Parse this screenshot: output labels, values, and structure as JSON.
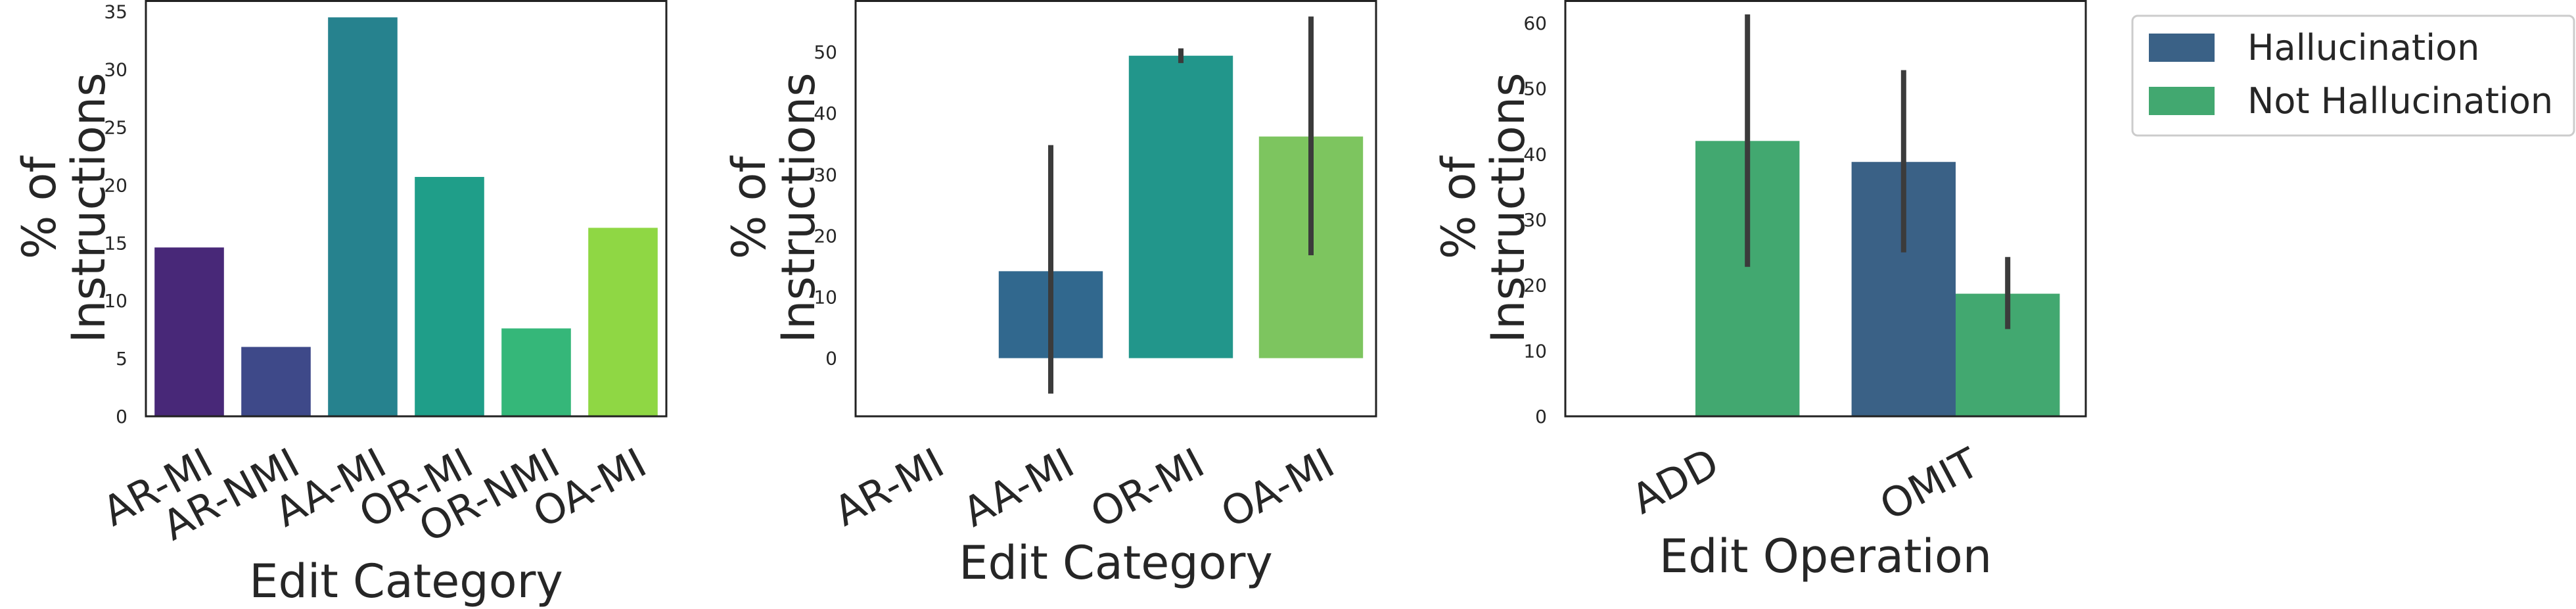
{
  "chart_data": [
    {
      "type": "bar",
      "categories": [
        "AR-MI",
        "AR-NMI",
        "AA-MI",
        "OR-MI",
        "OR-NMI",
        "OA-MI"
      ],
      "values": [
        14.6,
        6.0,
        34.5,
        20.7,
        7.6,
        16.3
      ],
      "colors": [
        "#482878",
        "#3e4989",
        "#26828e",
        "#1f9e89",
        "#35b779",
        "#8fd744"
      ],
      "xlabel": "Edit Category",
      "ylabel": [
        "% of",
        "Instructions"
      ],
      "ylim": [
        0,
        36
      ],
      "yticks": [
        0,
        5,
        10,
        15,
        20,
        25,
        30,
        35
      ],
      "grid": false
    },
    {
      "type": "bar",
      "categories": [
        "AR-MI",
        "AA-MI",
        "OR-MI",
        "OA-MI"
      ],
      "values": [
        null,
        14.2,
        49.4,
        36.2
      ],
      "error_low": [
        null,
        -5.8,
        48.2,
        16.8
      ],
      "error_high": [
        null,
        34.8,
        50.6,
        55.8
      ],
      "colors": [
        "#31688e",
        "#31688e",
        "#22968b",
        "#7dc55f"
      ],
      "xlabel": "Edit Category",
      "ylabel": [
        "% of",
        "Instructions"
      ],
      "ylim": [
        -9.5,
        58.5
      ],
      "yticks": [
        0,
        10,
        20,
        30,
        40,
        50
      ],
      "grid": false
    },
    {
      "type": "bar",
      "categories": [
        "ADD",
        "OMIT"
      ],
      "series": [
        {
          "name": "Hallucination",
          "color": "#3a6186",
          "values": [
            0,
            38.8
          ],
          "error_low": [
            null,
            25.0
          ],
          "error_high": [
            null,
            52.8
          ]
        },
        {
          "name": "Not Hallucination",
          "color": "#42a870",
          "values": [
            42.0,
            18.7
          ],
          "error_low": [
            22.8,
            13.3
          ],
          "error_high": [
            61.3,
            24.3
          ]
        }
      ],
      "xlabel": "Edit Operation",
      "ylabel": [
        "% of",
        "Instructions"
      ],
      "ylim": [
        0,
        63.5
      ],
      "yticks": [
        0,
        10,
        20,
        30,
        40,
        50,
        60
      ],
      "legend": "outside-right-top",
      "grid": false
    }
  ]
}
